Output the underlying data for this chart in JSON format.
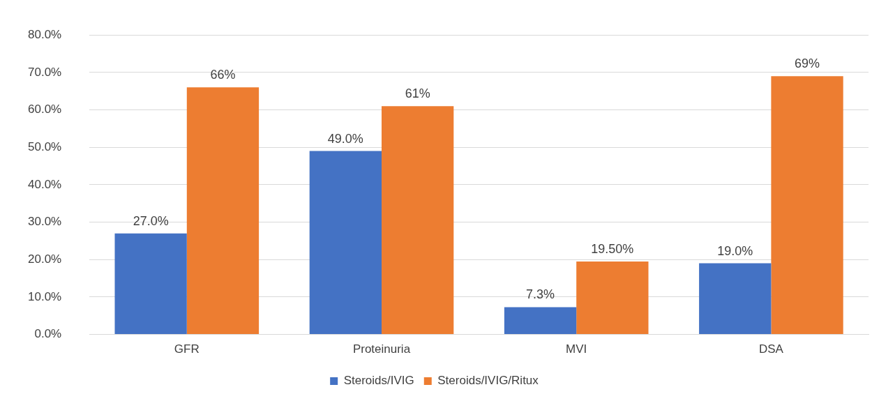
{
  "chart_data": {
    "type": "bar",
    "categories": [
      "GFR",
      "Proteinuria",
      "MVI",
      "DSA"
    ],
    "series": [
      {
        "name": "Steroids/IVIG",
        "color": "#4472c4",
        "values": [
          27,
          49,
          7.3,
          19
        ],
        "value_labels": [
          "27.0%",
          "49.0%",
          "7.3%",
          "19.0%"
        ]
      },
      {
        "name": "Steroids/IVIG/Ritux",
        "color": "#ed7d31",
        "values": [
          66,
          61,
          19.5,
          69
        ],
        "value_labels": [
          "66%",
          "61%",
          "19.50%",
          "69%"
        ]
      }
    ],
    "ylim": [
      0,
      80
    ],
    "yticks": [
      {
        "value": 0,
        "label": "0.0%"
      },
      {
        "value": 10,
        "label": "10.0%"
      },
      {
        "value": 20,
        "label": "20.0%"
      },
      {
        "value": 30,
        "label": "30.0%"
      },
      {
        "value": 40,
        "label": "40.0%"
      },
      {
        "value": 50,
        "label": "50.0%"
      },
      {
        "value": 60,
        "label": "60.0%"
      },
      {
        "value": 70,
        "label": "70.0%"
      },
      {
        "value": 80,
        "label": "80.0%"
      }
    ],
    "grid": "y",
    "legend": "bottom"
  }
}
